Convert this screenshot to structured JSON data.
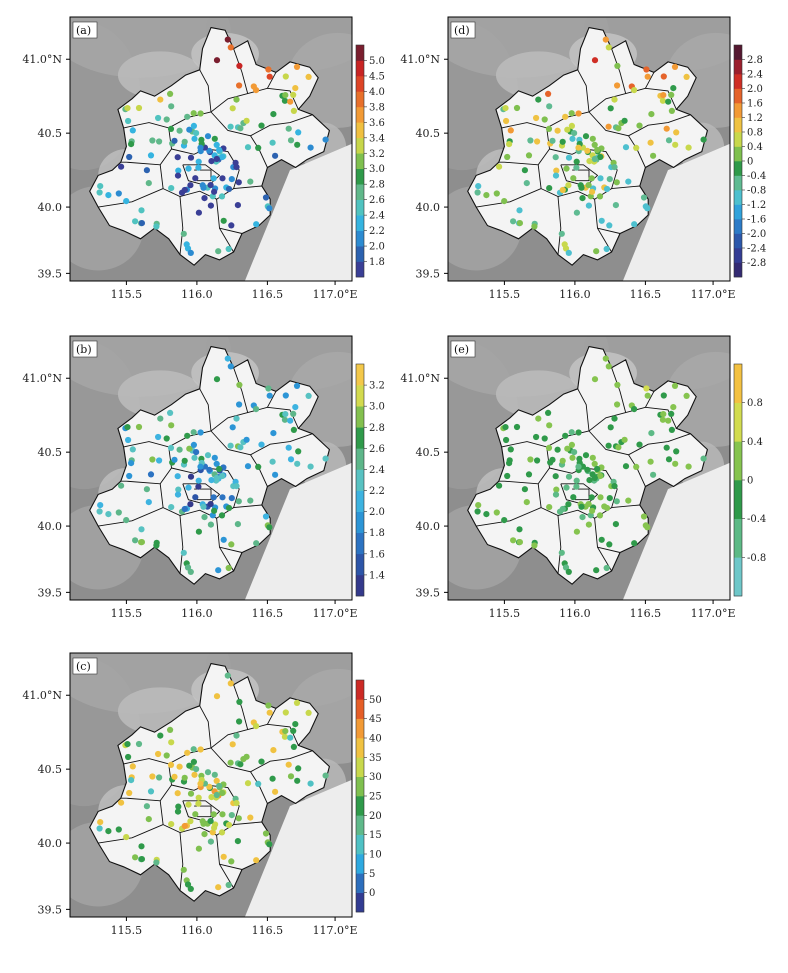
{
  "lat_labels": [
    "41.0°N",
    "40.5",
    "40.0",
    "39.5"
  ],
  "lon_labels": [
    "115.5",
    "116.0",
    "116.5",
    "117.0°E"
  ],
  "panels": [
    {
      "id": "a",
      "label": "(a)",
      "colorbar": [
        "1.8",
        "2.0",
        "2.2",
        "2.4",
        "2.6",
        "2.8",
        "3.0",
        "3.2",
        "3.4",
        "3.6",
        "3.8",
        "4.0",
        "4.5",
        "5.0"
      ],
      "colors": [
        "#3a3f96",
        "#2c62b0",
        "#2c8bd1",
        "#35b4e0",
        "#50c3c0",
        "#60b88a",
        "#2f9a4a",
        "#7fc04f",
        "#c7d64a",
        "#f0c040",
        "#f29a35",
        "#e8702b",
        "#dd4426",
        "#c82423",
        "#7a1e2e"
      ]
    },
    {
      "id": "b",
      "label": "(b)",
      "colorbar": [
        "1.4",
        "1.6",
        "1.8",
        "2.0",
        "2.2",
        "2.4",
        "2.6",
        "2.8",
        "3.0",
        "3.2"
      ],
      "colors": [
        "#343a8c",
        "#2d55a8",
        "#2c73c2",
        "#2c95d6",
        "#3db3e0",
        "#58c2c2",
        "#5db689",
        "#2f9a4a",
        "#83c04e",
        "#d3da4e",
        "#f3c84a"
      ]
    },
    {
      "id": "c",
      "label": "(c)",
      "colorbar": [
        "0",
        "5",
        "10",
        "15",
        "20",
        "25",
        "30",
        "35",
        "40",
        "45",
        "50"
      ],
      "colors": [
        "#323c92",
        "#2d6fbd",
        "#2ea9e0",
        "#4fc1c4",
        "#5fb98a",
        "#2f9a4a",
        "#7fc04f",
        "#c8d84c",
        "#f0c241",
        "#f29a35",
        "#e55e27",
        "#cc2a25"
      ]
    },
    {
      "id": "d",
      "label": "(d)",
      "colorbar": [
        "-2.8",
        "-2.4",
        "-2.0",
        "-1.6",
        "-1.2",
        "-0.8",
        "-0.4",
        "0",
        "0.4",
        "0.8",
        "1.2",
        "1.6",
        "2.0",
        "2.4",
        "2.8"
      ],
      "colors": [
        "#332a72",
        "#343d94",
        "#2c58ab",
        "#2c7bc7",
        "#30a2db",
        "#4dc0cf",
        "#5fbb92",
        "#2f9a4a",
        "#7fc04f",
        "#c8d84c",
        "#efc242",
        "#f29a35",
        "#e5632a",
        "#cf2e25",
        "#9b1f2c",
        "#541830"
      ]
    },
    {
      "id": "e",
      "label": "(e)",
      "colorbar": [
        "-0.8",
        "-0.4",
        "0",
        "0.4",
        "0.8"
      ],
      "colors": [
        "#6ec7c9",
        "#5dba86",
        "#2f9a4a",
        "#86c44f",
        "#d2dc4f",
        "#f3c141"
      ]
    }
  ]
}
